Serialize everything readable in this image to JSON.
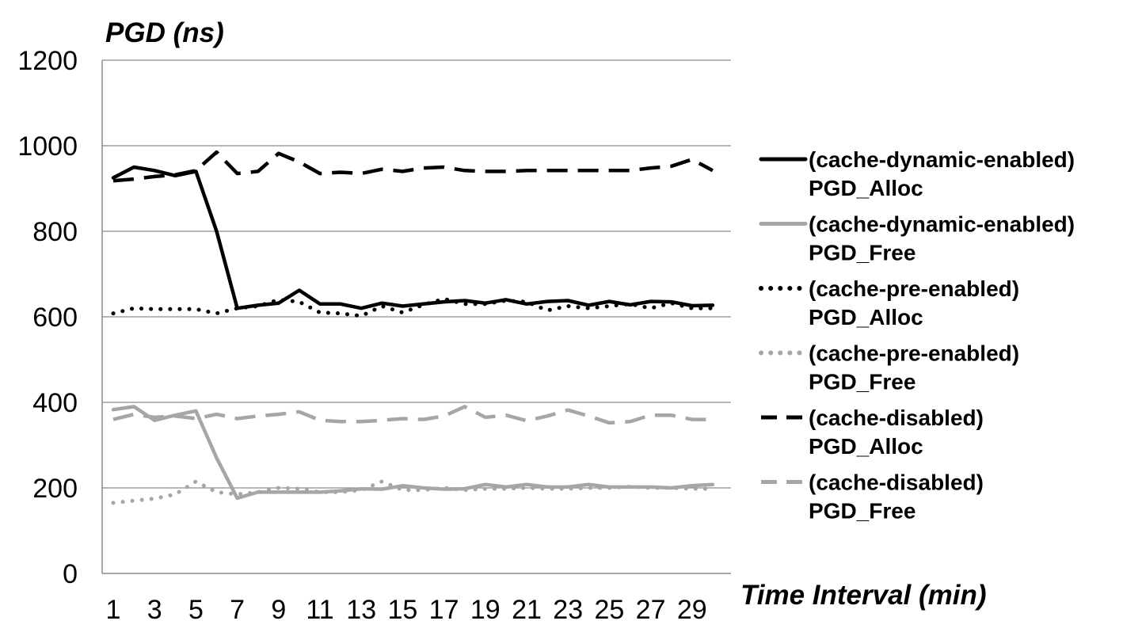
{
  "chart_data": {
    "type": "line",
    "ylabel": "PGD (ns)",
    "xlabel": "Time Interval (min)",
    "ylim": [
      0,
      1200
    ],
    "yticks": [
      0,
      200,
      400,
      600,
      800,
      1000,
      1200
    ],
    "xlim": [
      1,
      30
    ],
    "xticks": [
      1,
      3,
      5,
      7,
      9,
      11,
      13,
      15,
      17,
      19,
      21,
      23,
      25,
      27,
      29
    ],
    "grid": "horizontal",
    "legend_position": "right",
    "x": [
      1,
      2,
      3,
      4,
      5,
      6,
      7,
      8,
      9,
      10,
      11,
      12,
      13,
      14,
      15,
      16,
      17,
      18,
      19,
      20,
      21,
      22,
      23,
      24,
      25,
      26,
      27,
      28,
      29,
      30
    ],
    "series": [
      {
        "legend_line1": "(cache-dynamic-enabled)",
        "legend_line2": "PGD_Alloc",
        "color": "#000000",
        "dash": "solid",
        "values": [
          925,
          950,
          942,
          930,
          940,
          800,
          620,
          627,
          632,
          662,
          630,
          630,
          620,
          632,
          625,
          630,
          635,
          638,
          632,
          640,
          630,
          636,
          638,
          627,
          636,
          628,
          636,
          635,
          626,
          627
        ]
      },
      {
        "legend_line1": "(cache-dynamic-enabled)",
        "legend_line2": "PGD_Free",
        "color": "#a6a6a6",
        "dash": "solid",
        "values": [
          383,
          390,
          358,
          370,
          380,
          270,
          176,
          190,
          190,
          190,
          190,
          193,
          198,
          197,
          205,
          200,
          197,
          198,
          208,
          202,
          208,
          202,
          202,
          208,
          202,
          202,
          202,
          200,
          205,
          208
        ]
      },
      {
        "legend_line1": "(cache-pre-enabled)",
        "legend_line2": "PGD_Alloc",
        "color": "#000000",
        "dash": "dotted",
        "values": [
          608,
          620,
          618,
          618,
          618,
          608,
          620,
          625,
          640,
          635,
          610,
          608,
          602,
          625,
          610,
          628,
          642,
          630,
          630,
          638,
          635,
          615,
          625,
          620,
          625,
          630,
          620,
          632,
          620,
          620
        ]
      },
      {
        "legend_line1": "(cache-pre-enabled)",
        "legend_line2": "PGD_Free",
        "color": "#a6a6a6",
        "dash": "dotted",
        "values": [
          165,
          170,
          175,
          185,
          215,
          190,
          185,
          190,
          200,
          198,
          190,
          190,
          195,
          215,
          195,
          195,
          200,
          195,
          198,
          198,
          200,
          198,
          198,
          200,
          200,
          203,
          200,
          200,
          198,
          198
        ]
      },
      {
        "legend_line1": "(cache-disabled)",
        "legend_line2": "PGD_Alloc",
        "color": "#000000",
        "dash": "dashed",
        "values": [
          918,
          922,
          928,
          932,
          942,
          985,
          935,
          940,
          982,
          962,
          935,
          938,
          935,
          945,
          940,
          948,
          950,
          942,
          940,
          940,
          942,
          942,
          942,
          942,
          942,
          942,
          948,
          952,
          968,
          942
        ]
      },
      {
        "legend_line1": "(cache-disabled)",
        "legend_line2": "PGD_Free",
        "color": "#a6a6a6",
        "dash": "dashed",
        "values": [
          360,
          372,
          365,
          368,
          362,
          372,
          362,
          368,
          372,
          378,
          358,
          355,
          355,
          358,
          362,
          360,
          368,
          390,
          365,
          370,
          357,
          368,
          382,
          368,
          352,
          355,
          370,
          370,
          360,
          360
        ]
      }
    ]
  }
}
